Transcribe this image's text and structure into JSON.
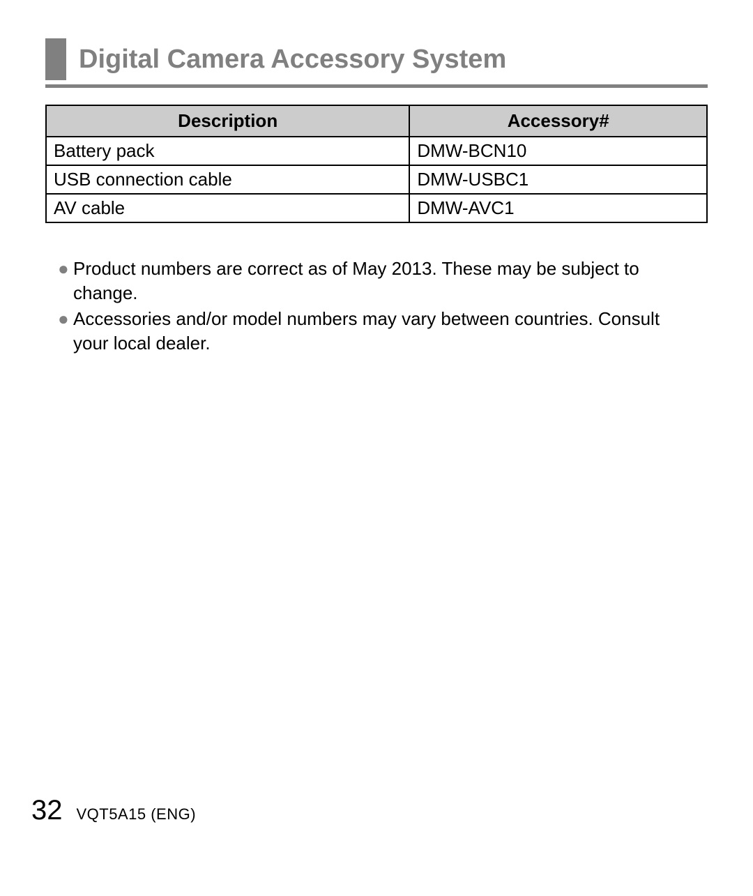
{
  "title": "Digital Camera Accessory System",
  "table": {
    "columns": [
      "Description",
      "Accessory#"
    ],
    "rows": [
      [
        "Battery pack",
        "DMW-BCN10"
      ],
      [
        "USB connection cable",
        "DMW-USBC1"
      ],
      [
        "AV cable",
        "DMW-AVC1"
      ]
    ],
    "header_bg": "#cccccc",
    "border_color": "#000000",
    "col_widths": [
      "55%",
      "45%"
    ]
  },
  "notes": [
    "Product numbers are correct as of May 2013. These may be subject to change.",
    "Accessories and/or model numbers may vary between countries. Consult your local dealer."
  ],
  "bullet_glyph": "●",
  "footer": {
    "page_number": "32",
    "doc_code": "VQT5A15 (ENG)"
  },
  "colors": {
    "title_gray": "#808080",
    "bullet_gray": "#808080",
    "text": "#000000",
    "background": "#ffffff"
  }
}
